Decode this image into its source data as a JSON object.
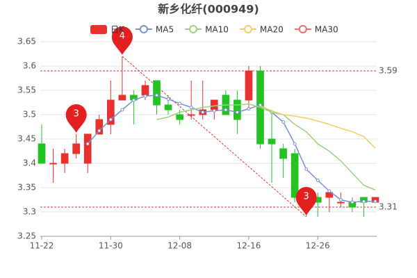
{
  "chart_data": {
    "type": "candlestick",
    "title": "新乡化纤(000949)",
    "categories": [
      "11-22",
      null,
      null,
      null,
      null,
      null,
      "11-30",
      null,
      null,
      null,
      null,
      null,
      "12-08",
      null,
      null,
      null,
      null,
      null,
      "12-16",
      null,
      null,
      null,
      null,
      null,
      "12-26",
      null,
      null,
      null,
      null,
      null
    ],
    "candle": {
      "name": "日K",
      "up_color": "#e8312f",
      "down_color": "#22c322",
      "open": [
        3.44,
        3.4,
        3.4,
        3.42,
        3.4,
        3.46,
        3.48,
        3.53,
        3.54,
        3.54,
        3.57,
        3.52,
        3.5,
        3.5,
        3.5,
        3.51,
        3.54,
        3.53,
        3.53,
        3.59,
        3.45,
        3.43,
        3.42,
        3.33,
        3.33,
        3.33,
        3.32,
        3.32,
        3.33,
        3.32
      ],
      "high": [
        3.48,
        3.43,
        3.43,
        3.46,
        3.46,
        3.5,
        3.57,
        3.62,
        3.55,
        3.57,
        3.57,
        3.54,
        3.51,
        3.57,
        3.57,
        3.53,
        3.55,
        3.55,
        3.6,
        3.6,
        3.51,
        3.44,
        3.43,
        3.35,
        3.34,
        3.34,
        3.34,
        3.33,
        3.33,
        3.33
      ],
      "low": [
        3.4,
        3.36,
        3.38,
        3.41,
        3.38,
        3.46,
        3.46,
        3.53,
        3.48,
        3.53,
        3.5,
        3.5,
        3.48,
        3.49,
        3.49,
        3.49,
        3.5,
        3.46,
        3.51,
        3.43,
        3.36,
        3.37,
        3.32,
        3.29,
        3.29,
        3.3,
        3.31,
        3.3,
        3.29,
        3.32
      ],
      "close": [
        3.4,
        3.4,
        3.42,
        3.44,
        3.46,
        3.49,
        3.53,
        3.54,
        3.53,
        3.56,
        3.52,
        3.51,
        3.49,
        3.5,
        3.51,
        3.53,
        3.5,
        3.49,
        3.59,
        3.44,
        3.44,
        3.41,
        3.33,
        3.32,
        3.32,
        3.34,
        3.32,
        3.31,
        3.32,
        3.33
      ]
    },
    "series": [
      {
        "name": "MA5",
        "color": "#7b8fd4",
        "values": [
          null,
          null,
          null,
          null,
          3.44,
          3.467,
          3.49,
          3.51,
          3.53,
          3.538,
          3.54,
          3.532,
          3.523,
          3.515,
          3.505,
          3.508,
          3.51,
          3.505,
          3.512,
          3.52,
          3.505,
          3.485,
          3.44,
          3.388,
          3.365,
          3.343,
          3.325,
          3.32,
          3.322,
          3.322
        ]
      },
      {
        "name": "MA10",
        "color": "#9ad37e",
        "values": [
          null,
          null,
          null,
          null,
          null,
          null,
          null,
          null,
          null,
          null,
          3.49,
          3.495,
          3.505,
          3.51,
          3.515,
          3.518,
          3.52,
          3.52,
          3.522,
          3.515,
          3.505,
          3.5,
          3.48,
          3.465,
          3.44,
          3.425,
          3.405,
          3.38,
          3.355,
          3.345
        ]
      },
      {
        "name": "MA20",
        "color": "#f5cd63",
        "values": [
          null,
          null,
          null,
          null,
          null,
          null,
          null,
          null,
          null,
          null,
          null,
          null,
          null,
          null,
          null,
          null,
          null,
          null,
          null,
          3.518,
          3.508,
          3.5,
          3.497,
          3.493,
          3.487,
          3.48,
          3.472,
          3.465,
          3.455,
          3.431
        ]
      },
      {
        "name": "MA30",
        "color": "#ef6f6c",
        "values": [
          null,
          null,
          null,
          null,
          null,
          null,
          null,
          null,
          null,
          null,
          null,
          null,
          null,
          null,
          null,
          null,
          null,
          null,
          null,
          null,
          null,
          null,
          null,
          null,
          null,
          null,
          null,
          null,
          null,
          null
        ]
      }
    ],
    "ylim": [
      3.25,
      3.65
    ],
    "yticks": [
      3.25,
      3.3,
      3.35,
      3.4,
      3.45,
      3.5,
      3.55,
      3.6,
      3.65
    ],
    "ref_lines": [
      3.59,
      3.31
    ],
    "pins": [
      "4",
      "3",
      "3"
    ]
  }
}
